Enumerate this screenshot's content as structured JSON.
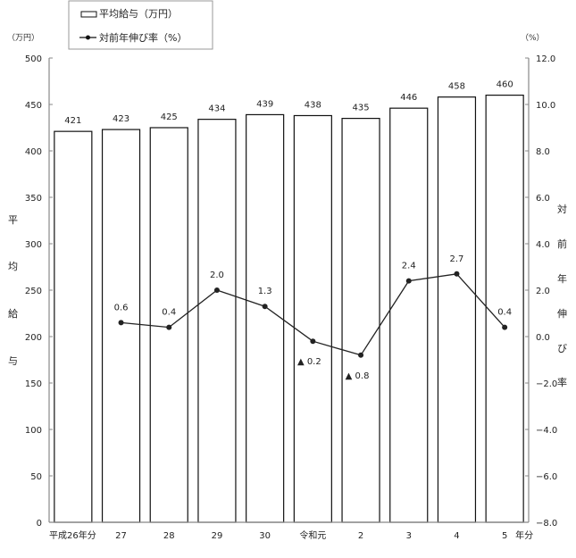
{
  "chart_data": {
    "type": "bar+line",
    "title": "",
    "categories": [
      "平成26年分",
      "27",
      "28",
      "29",
      "30",
      "令和元",
      "2",
      "3",
      "4",
      "5"
    ],
    "x_suffix_label": "年分",
    "series": [
      {
        "name": "平均給与（万円）",
        "type": "bar",
        "axis": "left",
        "values": [
          421,
          423,
          425,
          434,
          439,
          438,
          435,
          446,
          458,
          460
        ],
        "labels": [
          "421",
          "423",
          "425",
          "434",
          "439",
          "438",
          "435",
          "446",
          "458",
          "460"
        ]
      },
      {
        "name": "対前年伸び率（%）",
        "type": "line",
        "axis": "right",
        "values": [
          null,
          0.6,
          0.4,
          2.0,
          1.3,
          -0.2,
          -0.8,
          2.4,
          2.7,
          0.4
        ],
        "labels": [
          "",
          "0.6",
          "0.4",
          "2.0",
          "1.3",
          "▲ 0.2",
          "▲ 0.8",
          "2.4",
          "2.7",
          "0.4"
        ]
      }
    ],
    "left_axis": {
      "unit": "（万円）",
      "title_chars": [
        "平",
        "均",
        "給",
        "与"
      ],
      "ylim": [
        0,
        500
      ],
      "ticks": [
        0,
        50,
        100,
        150,
        200,
        250,
        300,
        350,
        400,
        450,
        500
      ]
    },
    "right_axis": {
      "unit": "（%）",
      "title_chars": [
        "対",
        "前",
        "年",
        "伸",
        "び",
        "率"
      ],
      "ylim": [
        -8.0,
        12.0
      ],
      "ticks": [
        "-8.0",
        "-6.0",
        "-4.0",
        "-2.0",
        "0.0",
        "2.0",
        "4.0",
        "6.0",
        "8.0",
        "10.0",
        "12.0"
      ]
    },
    "legend": {
      "position": "top-left",
      "items": [
        {
          "label": "平均給与（万円）",
          "symbol": "bar"
        },
        {
          "label": "対前年伸び率（%）",
          "symbol": "line-marker"
        }
      ]
    },
    "grid": false
  },
  "colors": {
    "bar_fill": "#ffffff",
    "bar_stroke": "#111111",
    "line": "#222222",
    "axis": "#888888"
  }
}
